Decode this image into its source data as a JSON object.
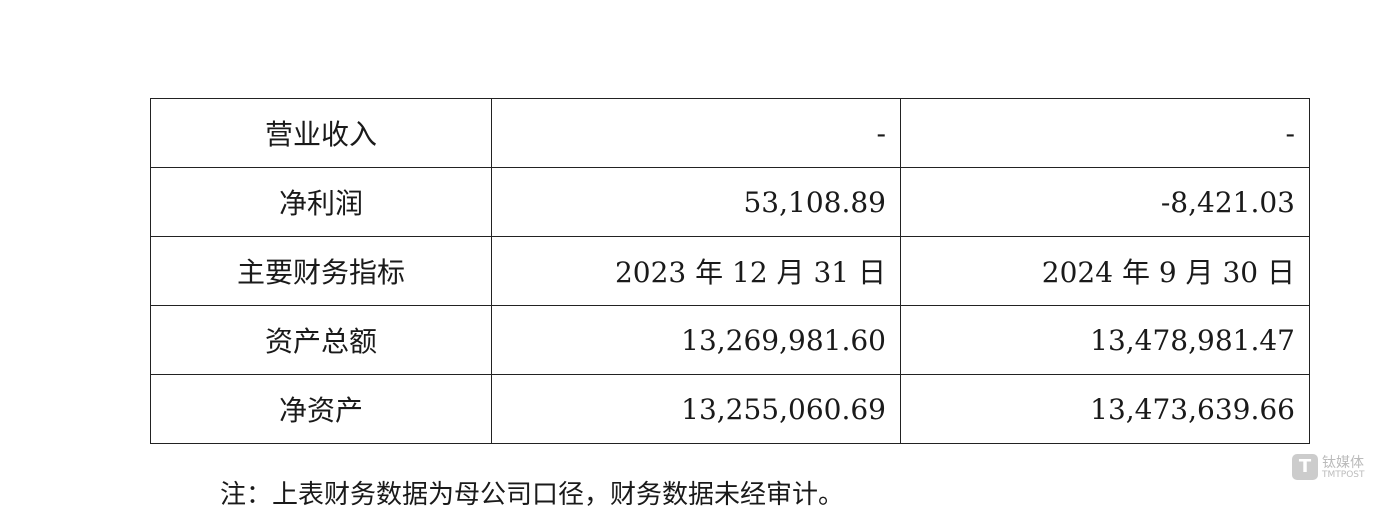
{
  "table": {
    "rows": [
      [
        "营业收入",
        "-",
        "-"
      ],
      [
        "净利润",
        "53,108.89",
        "-8,421.03"
      ],
      [
        "主要财务指标",
        "2023 年 12 月 31 日",
        "2024 年 9 月 30 日"
      ],
      [
        "资产总额",
        "13,269,981.60",
        "13,478,981.47"
      ],
      [
        "净资产",
        "13,255,060.69",
        "13,473,639.66"
      ]
    ]
  },
  "note": "注：上表财务数据为母公司口径，财务数据未经审计。",
  "watermark": {
    "name": "钛媒体",
    "sub": "TMTPOST"
  }
}
